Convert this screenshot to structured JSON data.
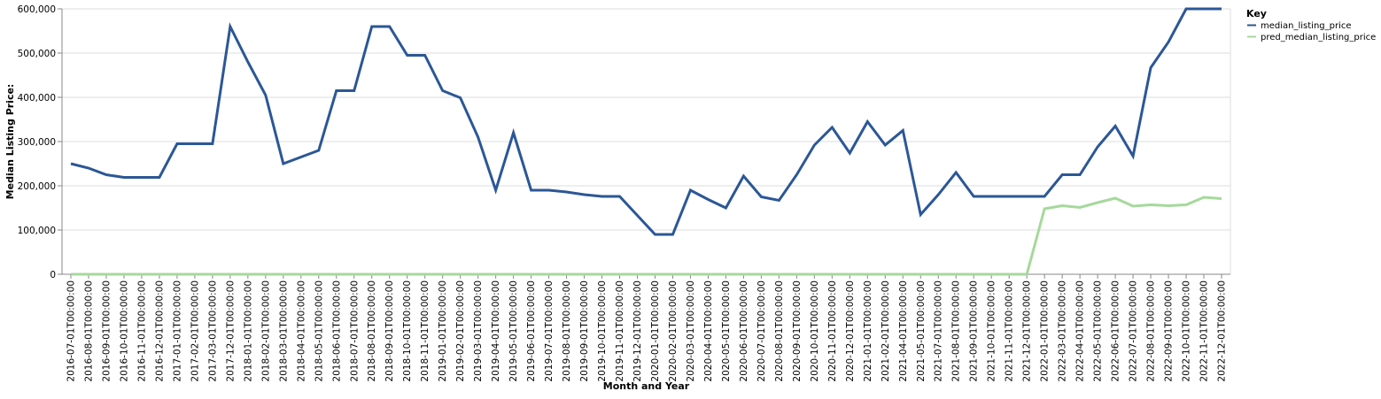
{
  "chart_data": {
    "type": "line",
    "xlabel": "Month and Year",
    "ylabel": "Median Listing Price:",
    "ylim": [
      0,
      600000
    ],
    "y_ticks": [
      0,
      100000,
      200000,
      300000,
      400000,
      500000,
      600000
    ],
    "y_tick_labels": [
      "0",
      "100,000",
      "200,000",
      "300,000",
      "400,000",
      "500,000",
      "600,000"
    ],
    "grid": true,
    "legend": {
      "title": "Key",
      "placement": "top-right"
    },
    "categories": [
      "2016-07-01T00:00:00",
      "2016-08-01T00:00:00",
      "2016-09-01T00:00:00",
      "2016-10-01T00:00:00",
      "2016-11-01T00:00:00",
      "2016-12-01T00:00:00",
      "2017-01-01T00:00:00",
      "2017-02-01T00:00:00",
      "2017-03-01T00:00:00",
      "2017-12-01T00:00:00",
      "2018-01-01T00:00:00",
      "2018-02-01T00:00:00",
      "2018-03-01T00:00:00",
      "2018-04-01T00:00:00",
      "2018-05-01T00:00:00",
      "2018-06-01T00:00:00",
      "2018-07-01T00:00:00",
      "2018-08-01T00:00:00",
      "2018-09-01T00:00:00",
      "2018-10-01T00:00:00",
      "2018-11-01T00:00:00",
      "2019-01-01T00:00:00",
      "2019-02-01T00:00:00",
      "2019-03-01T00:00:00",
      "2019-04-01T00:00:00",
      "2019-05-01T00:00:00",
      "2019-06-01T00:00:00",
      "2019-07-01T00:00:00",
      "2019-08-01T00:00:00",
      "2019-09-01T00:00:00",
      "2019-10-01T00:00:00",
      "2019-11-01T00:00:00",
      "2019-12-01T00:00:00",
      "2020-01-01T00:00:00",
      "2020-02-01T00:00:00",
      "2020-03-01T00:00:00",
      "2020-04-01T00:00:00",
      "2020-05-01T00:00:00",
      "2020-06-01T00:00:00",
      "2020-07-01T00:00:00",
      "2020-08-01T00:00:00",
      "2020-09-01T00:00:00",
      "2020-10-01T00:00:00",
      "2020-11-01T00:00:00",
      "2020-12-01T00:00:00",
      "2021-01-01T00:00:00",
      "2021-02-01T00:00:00",
      "2021-04-01T00:00:00",
      "2021-05-01T00:00:00",
      "2021-07-01T00:00:00",
      "2021-08-01T00:00:00",
      "2021-09-01T00:00:00",
      "2021-10-01T00:00:00",
      "2021-11-01T00:00:00",
      "2021-12-01T00:00:00",
      "2022-01-01T00:00:00",
      "2022-03-01T00:00:00",
      "2022-04-01T00:00:00",
      "2022-05-01T00:00:00",
      "2022-06-01T00:00:00",
      "2022-07-01T00:00:00",
      "2022-08-01T00:00:00",
      "2022-09-01T00:00:00",
      "2022-10-01T00:00:00",
      "2022-11-01T00:00:00",
      "2022-12-01T00:00:00"
    ],
    "series": [
      {
        "name": "median_listing_price",
        "color": "#2b5796",
        "values": [
          250000,
          240000,
          225000,
          219000,
          219000,
          219000,
          295000,
          295000,
          295000,
          560000,
          480000,
          405000,
          250000,
          265000,
          280000,
          415000,
          415000,
          560000,
          560000,
          495000,
          495000,
          415000,
          399000,
          310000,
          190000,
          320000,
          190000,
          190000,
          186000,
          180000,
          176000,
          176000,
          133000,
          90000,
          90000,
          190000,
          169000,
          150000,
          222000,
          175000,
          167000,
          225000,
          292000,
          332000,
          274000,
          345000,
          292000,
          325000,
          135000,
          180000,
          230000,
          176000,
          176000,
          176000,
          176000,
          176000,
          225000,
          225000,
          288000,
          335000,
          267000,
          467000,
          525000,
          600000,
          600000,
          600000
        ]
      },
      {
        "name": "pred_median_listing_price",
        "color": "#a5d99b",
        "values": [
          0,
          0,
          0,
          0,
          0,
          0,
          0,
          0,
          0,
          0,
          0,
          0,
          0,
          0,
          0,
          0,
          0,
          0,
          0,
          0,
          0,
          0,
          0,
          0,
          0,
          0,
          0,
          0,
          0,
          0,
          0,
          0,
          0,
          0,
          0,
          0,
          0,
          0,
          0,
          0,
          0,
          0,
          0,
          0,
          0,
          0,
          0,
          0,
          0,
          0,
          0,
          0,
          0,
          0,
          0,
          148000,
          155000,
          151000,
          162000,
          172000,
          154000,
          157000,
          155000,
          157000,
          174000,
          171000
        ]
      }
    ]
  }
}
